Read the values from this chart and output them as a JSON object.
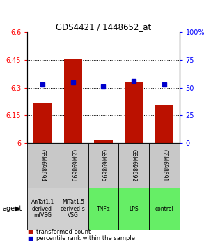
{
  "title": "GDS4421 / 1448652_at",
  "samples": [
    "GSM698694",
    "GSM698693",
    "GSM698695",
    "GSM698692",
    "GSM698691"
  ],
  "agents": [
    "AnTat1.1\nderived-\nmfVSG",
    "MiTat1.5\nderived-s\nVSG",
    "TNFα",
    "LPS",
    "control"
  ],
  "agent_colors": [
    "#d0d0d0",
    "#d0d0d0",
    "#66ee66",
    "#66ee66",
    "#66ee66"
  ],
  "gsm_color": "#c8c8c8",
  "transformed_counts": [
    6.22,
    6.455,
    6.02,
    6.33,
    6.205
  ],
  "percentile_ranks": [
    53,
    55,
    51,
    56,
    53
  ],
  "ylim_left": [
    6.0,
    6.6
  ],
  "ylim_right": [
    0,
    100
  ],
  "yticks_left": [
    6.0,
    6.15,
    6.3,
    6.45,
    6.6
  ],
  "yticks_right": [
    0,
    25,
    50,
    75,
    100
  ],
  "ytick_labels_left": [
    "6",
    "6.15",
    "6.3",
    "6.45",
    "6.6"
  ],
  "ytick_labels_right": [
    "0",
    "25",
    "50",
    "75",
    "100%"
  ],
  "bar_color": "#bb1100",
  "dot_color": "#0000cc",
  "bar_bottom": 6.0
}
